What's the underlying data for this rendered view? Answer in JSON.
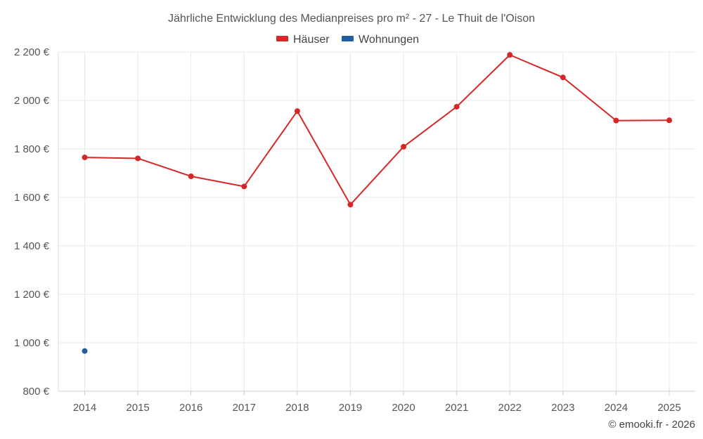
{
  "chart_data": {
    "type": "line",
    "title": "Jährliche Entwicklung des Medianpreises pro m² - 27 - Le Thuit de l'Oison",
    "categories": [
      "2014",
      "2015",
      "2016",
      "2017",
      "2018",
      "2019",
      "2020",
      "2021",
      "2022",
      "2023",
      "2024",
      "2025"
    ],
    "series": [
      {
        "name": "Häuser",
        "color": "#d62728",
        "values": [
          1765,
          1761,
          1687,
          1645,
          1956,
          1570,
          1809,
          1974,
          2188,
          2095,
          1917,
          1918
        ]
      },
      {
        "name": "Wohnungen",
        "color": "#1f5f9e",
        "values": [
          966,
          null,
          null,
          null,
          null,
          null,
          null,
          null,
          null,
          null,
          null,
          null
        ]
      }
    ],
    "ylim": [
      800,
      2200
    ],
    "yticks": [
      800,
      1000,
      1200,
      1400,
      1600,
      1800,
      2000,
      2200
    ],
    "ytick_labels": [
      "800 €",
      "1 000 €",
      "1 200 €",
      "1 400 €",
      "1 600 €",
      "1 800 €",
      "2 000 €",
      "2 200 €"
    ],
    "grid": true,
    "legend_position": "top-center",
    "xlabel": "",
    "ylabel": ""
  },
  "credit": "© emooki.fr - 2026"
}
